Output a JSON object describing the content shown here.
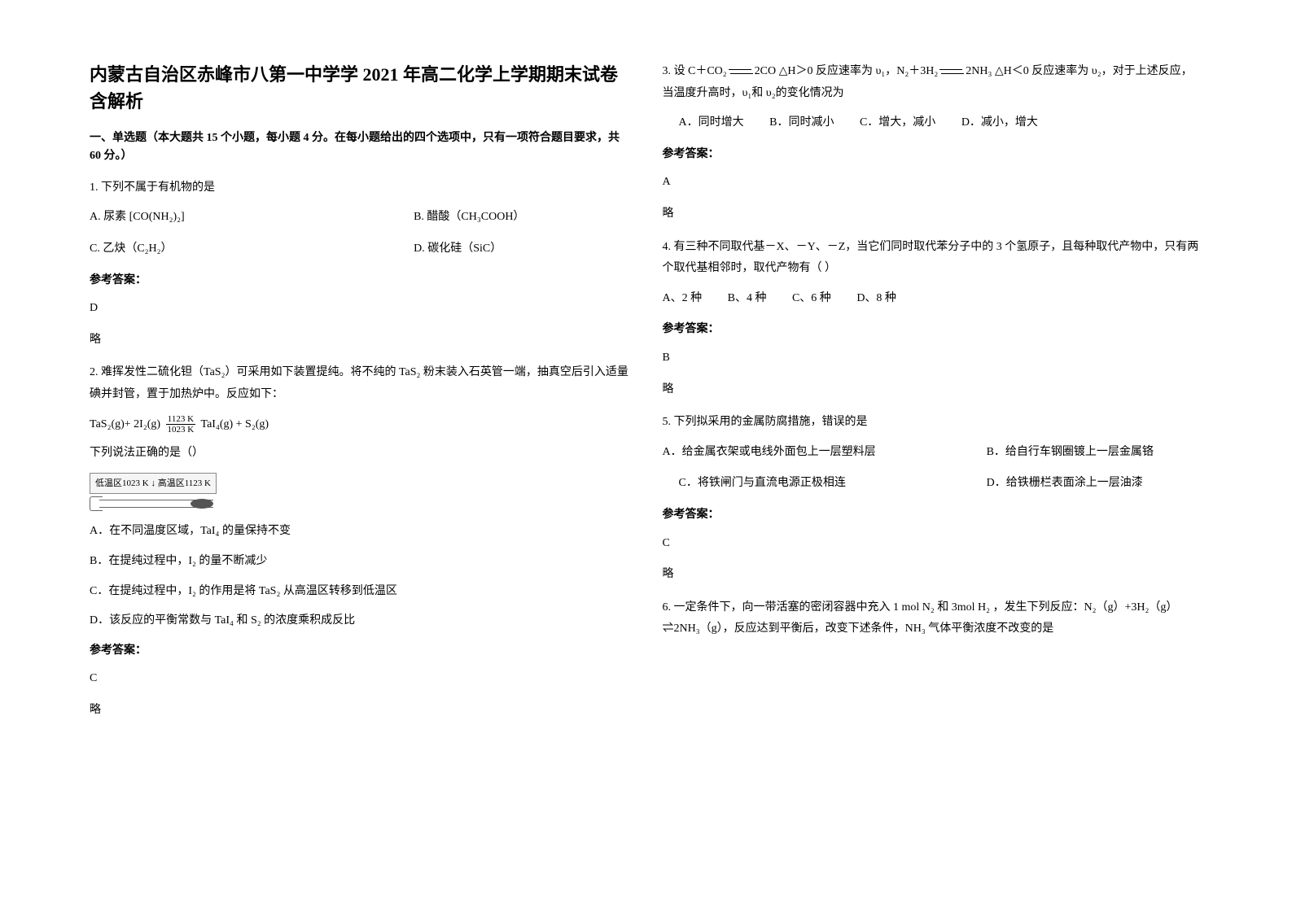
{
  "title": "内蒙古自治区赤峰市八第一中学学 2021 年高二化学上学期期末试卷含解析",
  "section1_header": "一、单选题（本大题共 15 个小题，每小题 4 分。在每小题给出的四个选项中，只有一项符合题目要求，共 60 分。）",
  "q1": {
    "text": "1. 下列不属于有机物的是",
    "optA": "A. 尿素 [CO(NH₂)₂]",
    "optB": "B. 醋酸（CH₃COOH）",
    "optC": "C. 乙炔（C₂H₂）",
    "optD": "D. 碳化硅（SiC）",
    "answer_label": "参考答案：",
    "answer": "D",
    "note": "略"
  },
  "q2": {
    "text": "2. 难挥发性二硫化钽（TaS₂）可采用如下装置提纯。将不纯的 TaS₂ 粉末装入石英管一端，抽真空后引入适量碘并封管，置于加热炉中。反应如下：",
    "equation_left": "TaS₂(g)+ 2I₂(g)",
    "equation_frac_num": "1123 K",
    "equation_frac_den": "1023 K",
    "equation_right": "TaI₄(g) + S₂(g)",
    "sub_text": "下列说法正确的是（）",
    "diagram_label": "低温区1023 K ↓ 高温区1123 K",
    "optA": "A．在不同温度区域，TaI₄ 的量保持不变",
    "optB": "B．在提纯过程中，I₂ 的量不断减少",
    "optC": "C．在提纯过程中，I₂ 的作用是将 TaS₂ 从高温区转移到低温区",
    "optD": "D．该反应的平衡常数与 TaI₄ 和 S₂ 的浓度乘积成反比",
    "answer_label": "参考答案：",
    "answer": "C",
    "note": "略"
  },
  "q3": {
    "text_p1": "3. 设 C＋CO₂",
    "text_p2": "2CO  △H＞0 反应速率为 υ₁，N₂＋3H₂",
    "text_p3": "2NH₃  △H＜0 反应速率为 υ₂，对于上述反应，当温度升高时，υ₁和 υ₂的变化情况为",
    "optA": "A．同时增大",
    "optB": "B．同时减小",
    "optC": "C．增大，减小",
    "optD": "D．减小，增大",
    "answer_label": "参考答案：",
    "answer": "A",
    "note": "略"
  },
  "q4": {
    "text": "4. 有三种不同取代基－X、－Y、－Z，当它们同时取代苯分子中的 3 个氢原子，且每种取代产物中，只有两个取代基相邻时，取代产物有（  ）",
    "optA": "A、2 种",
    "optB": "B、4 种",
    "optC": "C、6 种",
    "optD": "D、8 种",
    "answer_label": "参考答案：",
    "answer": "B",
    "note": "略"
  },
  "q5": {
    "text": "5. 下列拟采用的金属防腐措施，错误的是",
    "optA": "A．给金属衣架或电线外面包上一层塑料层",
    "optB": "B．给自行车钢圈镀上一层金属铬",
    "optC": "C．将铁闸门与直流电源正极相连",
    "optD": "D．给铁栅栏表面涂上一层油漆",
    "answer_label": "参考答案：",
    "answer": "C",
    "note": "略"
  },
  "q6": {
    "text": "6. 一定条件下，向一带活塞的密闭容器中充入 1 mol N₂ 和 3mol H₂ ，发生下列反应：N₂（g）+3H₂（g）⇌2NH₃（g），反应达到平衡后，改变下述条件，NH₃ 气体平衡浓度不改变的是"
  }
}
